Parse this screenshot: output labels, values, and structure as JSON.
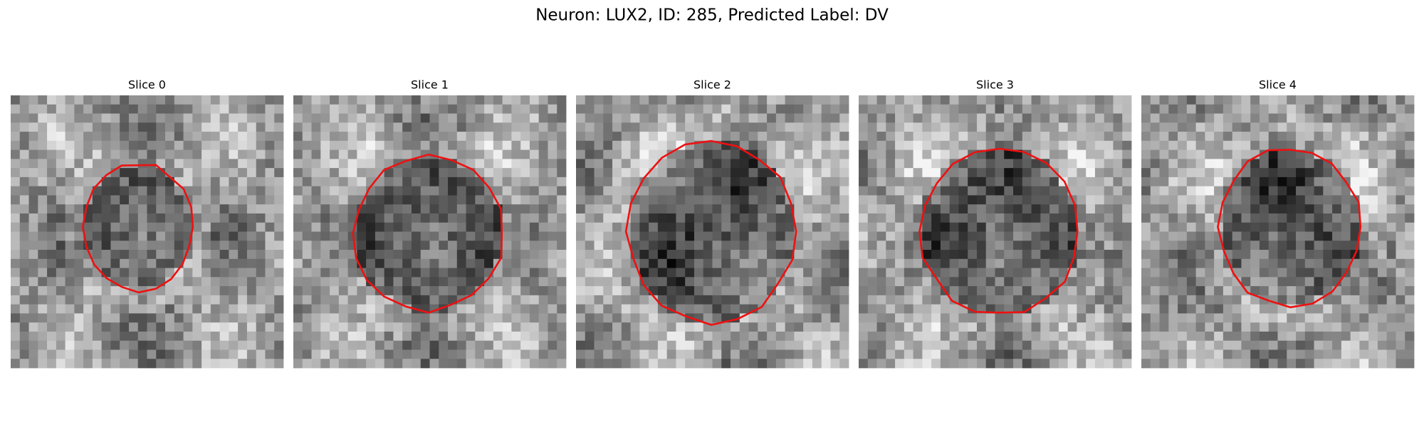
{
  "title": "Neuron: LUX2, ID: 285, Predicted Label: DV",
  "panels": [
    {
      "title": "Slice 0"
    },
    {
      "title": "Slice 1"
    },
    {
      "title": "Slice 2"
    },
    {
      "title": "Slice 3"
    },
    {
      "title": "Slice 4"
    }
  ]
}
